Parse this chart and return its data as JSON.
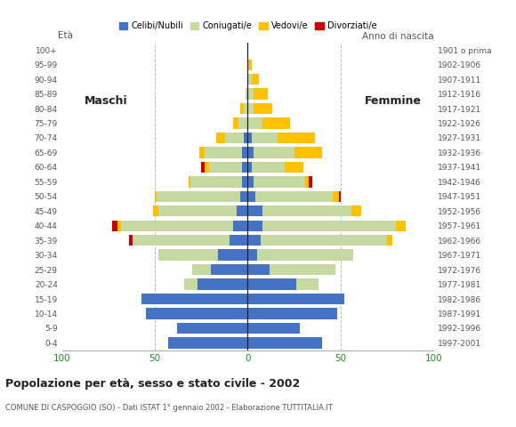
{
  "age_groups": [
    "0-4",
    "5-9",
    "10-14",
    "15-19",
    "20-24",
    "25-29",
    "30-34",
    "35-39",
    "40-44",
    "45-49",
    "50-54",
    "55-59",
    "60-64",
    "65-69",
    "70-74",
    "75-79",
    "80-84",
    "85-89",
    "90-94",
    "95-99",
    "100+"
  ],
  "birth_years": [
    "1997-2001",
    "1992-1996",
    "1987-1991",
    "1982-1986",
    "1977-1981",
    "1972-1976",
    "1967-1971",
    "1962-1966",
    "1957-1961",
    "1952-1956",
    "1947-1951",
    "1942-1946",
    "1937-1941",
    "1932-1936",
    "1927-1931",
    "1922-1926",
    "1917-1921",
    "1912-1916",
    "1907-1911",
    "1902-1906",
    "1901 o prima"
  ],
  "male": {
    "celibi": [
      43,
      38,
      55,
      57,
      27,
      20,
      16,
      10,
      8,
      6,
      4,
      3,
      3,
      3,
      2,
      0,
      0,
      0,
      0,
      0,
      0
    ],
    "coniugati": [
      0,
      0,
      0,
      0,
      7,
      10,
      32,
      52,
      60,
      42,
      45,
      28,
      18,
      20,
      10,
      5,
      2,
      1,
      0,
      0,
      0
    ],
    "vedovi": [
      0,
      0,
      0,
      0,
      0,
      0,
      0,
      0,
      2,
      3,
      1,
      1,
      2,
      3,
      5,
      3,
      2,
      0,
      0,
      0,
      0
    ],
    "divorziati": [
      0,
      0,
      0,
      0,
      0,
      0,
      0,
      2,
      3,
      0,
      0,
      0,
      2,
      0,
      0,
      0,
      0,
      0,
      0,
      0,
      0
    ]
  },
  "female": {
    "nubili": [
      40,
      28,
      48,
      52,
      26,
      12,
      5,
      7,
      8,
      8,
      4,
      3,
      2,
      3,
      2,
      0,
      0,
      0,
      0,
      0,
      0
    ],
    "coniugate": [
      0,
      0,
      0,
      0,
      12,
      35,
      52,
      68,
      72,
      48,
      42,
      28,
      18,
      22,
      14,
      8,
      3,
      3,
      2,
      0,
      0
    ],
    "vedove": [
      0,
      0,
      0,
      0,
      0,
      0,
      0,
      3,
      5,
      5,
      3,
      2,
      10,
      15,
      20,
      15,
      10,
      8,
      4,
      2,
      0
    ],
    "divorziate": [
      0,
      0,
      0,
      0,
      0,
      0,
      0,
      0,
      0,
      0,
      1,
      2,
      0,
      0,
      0,
      0,
      0,
      0,
      0,
      0,
      0
    ]
  },
  "colors": {
    "celibi": "#4472c4",
    "coniugati": "#c5d9a0",
    "vedovi": "#ffc000",
    "divorziati": "#cc0000"
  },
  "title": "Popolazione per età, sesso e stato civile - 2002",
  "subtitle": "COMUNE DI CASPOGGIO (SO) - Dati ISTAT 1° gennaio 2002 - Elaborazione TUTTITALIA.IT",
  "xlabel_left": "Maschi",
  "xlabel_right": "Femmine",
  "ylabel_left": "Età",
  "ylabel_right": "Anno di nascita",
  "xlim": 100,
  "legend_labels": [
    "Celibi/Nubili",
    "Coniugati/e",
    "Vedovi/e",
    "Divorziati/e"
  ],
  "background_color": "#ffffff",
  "bar_height": 0.75
}
